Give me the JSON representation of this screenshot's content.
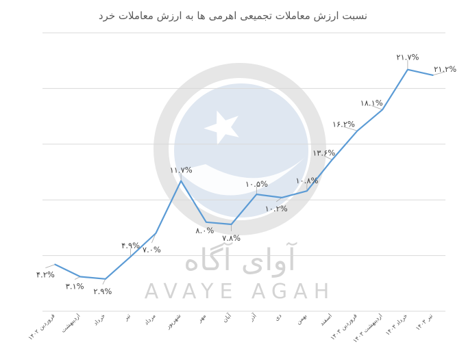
{
  "chart_data": {
    "type": "line",
    "title": "نسبت ارزش معاملات تجمیعی اهرمی ها به ارزش معاملات خرد",
    "xlabel": "",
    "ylabel": "",
    "ylim": [
      0,
      25
    ],
    "grid": true,
    "legend": "none",
    "categories": [
      "فروردین ۱۴۰۲",
      "اردیبهشت",
      "خرداد",
      "تیر",
      "مرداد",
      "شهریور",
      "مهر",
      "آبان",
      "آذر",
      "دی",
      "بهمن",
      "اسفند",
      "فروردین ۱۴۰۳",
      "اردیبهشت ۱۴۰۳",
      "خرداد ۱۴۰۳",
      "تیر ۱۴۰۳"
    ],
    "series": [
      {
        "values": [
          4.2,
          3.1,
          2.9,
          4.9,
          7.0,
          11.7,
          8.0,
          7.8,
          10.5,
          10.2,
          10.8,
          13.6,
          16.2,
          18.1,
          21.7,
          21.2
        ],
        "labels": [
          "۴.۲%",
          "۳.۱%",
          "۲.۹%",
          "۴.۹%",
          "۷.۰%",
          "۱۱.۷%",
          "۸.۰%",
          "۷.۸%",
          "۱۰.۵%",
          "۱۰.۲%",
          "۱۰.۸%",
          "۱۳.۶%",
          "۱۶.۲%",
          "۱۸.۱%",
          "۲۱.۷%",
          "۲۱.۲%"
        ]
      }
    ],
    "colors": {
      "line": "#5b9bd5",
      "last_label": "#2e8b2e",
      "label": "#404040",
      "grid": "#d9d9d9"
    }
  },
  "watermark": {
    "name_fa": "آوای آگاه",
    "name_en": "AVAYE AGAH",
    "icon": "avaye-agah-logo-icon"
  }
}
